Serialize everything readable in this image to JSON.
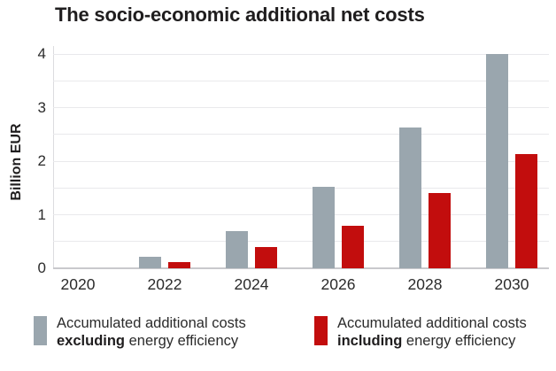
{
  "title": "The socio-economic additional net costs",
  "colors": {
    "bar_excluding": "#9AA6AE",
    "bar_including": "#C20D0D",
    "gridline": "#E9E9EC",
    "axis_line": "#C9C9CD",
    "text": "#2B2B2B",
    "title_text": "#1F1D1E"
  },
  "chart_data": {
    "type": "bar",
    "title": "The socio-economic additional net costs",
    "xlabel": "",
    "ylabel": "Billion EUR",
    "categories": [
      "2020",
      "2022",
      "2024",
      "2026",
      "2028",
      "2030"
    ],
    "series": [
      {
        "name": "Accumulated additional costs excluding energy efficiency",
        "color": "#9AA6AE",
        "values": [
          0,
          0.22,
          0.7,
          1.52,
          2.62,
          4.0
        ]
      },
      {
        "name": "Accumulated additional costs including energy efficiency",
        "color": "#C20D0D",
        "values": [
          0,
          0.12,
          0.4,
          0.8,
          1.4,
          2.13
        ]
      }
    ],
    "ylim": [
      0,
      4
    ],
    "ytick_labels": [
      "0",
      "1",
      "2",
      "3",
      "4"
    ],
    "grid_step": 0.5,
    "grid": true,
    "legend_position": "bottom"
  },
  "legend": {
    "items": [
      {
        "line1": "Accumulated additional costs",
        "bold": "excluding",
        "rest": " energy efficiency",
        "color": "#9AA6AE"
      },
      {
        "line1": "Accumulated additional costs",
        "bold": "including",
        "rest": " energy efficiency",
        "color": "#C20D0D"
      }
    ]
  }
}
